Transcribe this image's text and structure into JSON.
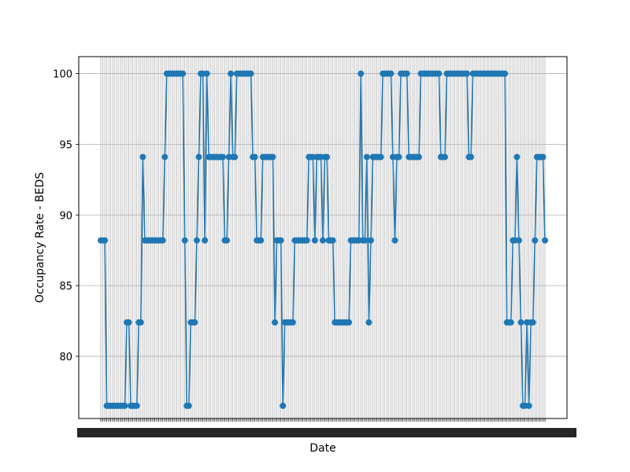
{
  "chart_data": {
    "type": "line",
    "title": "",
    "xlabel": "Date",
    "ylabel": "Occupancy Rate - BEDS",
    "grid": true,
    "ylim": [
      75.6,
      101.2
    ],
    "yticks": [
      80,
      85,
      90,
      95,
      100
    ],
    "x_tick_labels_note": "dense overlapping date labels (one per point), unreadable",
    "series": [
      {
        "name": "Occupancy Rate - BEDS",
        "color": "#1f77b4",
        "values": [
          88.2,
          88.2,
          88.2,
          76.5,
          76.5,
          76.5,
          76.5,
          76.5,
          76.5,
          76.5,
          76.5,
          76.5,
          76.5,
          82.4,
          82.4,
          76.5,
          76.5,
          76.5,
          76.5,
          82.4,
          82.4,
          94.1,
          88.2,
          88.2,
          88.2,
          88.2,
          88.2,
          88.2,
          88.2,
          88.2,
          88.2,
          88.2,
          94.1,
          100,
          100,
          100,
          100,
          100,
          100,
          100,
          100,
          100,
          88.2,
          76.5,
          76.5,
          82.4,
          82.4,
          82.4,
          88.2,
          94.1,
          100,
          100,
          88.2,
          100,
          94.1,
          94.1,
          94.1,
          94.1,
          94.1,
          94.1,
          94.1,
          94.1,
          88.2,
          88.2,
          94.1,
          100,
          94.1,
          94.1,
          100,
          100,
          100,
          100,
          100,
          100,
          100,
          100,
          94.1,
          94.1,
          88.2,
          88.2,
          88.2,
          94.1,
          94.1,
          94.1,
          94.1,
          94.1,
          94.1,
          82.4,
          88.2,
          88.2,
          88.2,
          76.5,
          82.4,
          82.4,
          82.4,
          82.4,
          82.4,
          88.2,
          88.2,
          88.2,
          88.2,
          88.2,
          88.2,
          88.2,
          94.1,
          94.1,
          94.1,
          88.2,
          94.1,
          94.1,
          94.1,
          88.2,
          94.1,
          94.1,
          88.2,
          88.2,
          88.2,
          82.4,
          82.4,
          82.4,
          82.4,
          82.4,
          82.4,
          82.4,
          82.4,
          88.2,
          88.2,
          88.2,
          88.2,
          88.2,
          100,
          88.2,
          88.2,
          94.1,
          82.4,
          88.2,
          94.1,
          94.1,
          94.1,
          94.1,
          94.1,
          100,
          100,
          100,
          100,
          100,
          94.1,
          88.2,
          94.1,
          94.1,
          100,
          100,
          100,
          100,
          94.1,
          94.1,
          94.1,
          94.1,
          94.1,
          94.1,
          100,
          100,
          100,
          100,
          100,
          100,
          100,
          100,
          100,
          100,
          94.1,
          94.1,
          94.1,
          100,
          100,
          100,
          100,
          100,
          100,
          100,
          100,
          100,
          100,
          100,
          94.1,
          94.1,
          100,
          100,
          100,
          100,
          100,
          100,
          100,
          100,
          100,
          100,
          100,
          100,
          100,
          100,
          100,
          100,
          100,
          82.4,
          82.4,
          82.4,
          88.2,
          88.2,
          94.1,
          88.2,
          82.4,
          76.5,
          76.5,
          82.4,
          76.5,
          82.4,
          82.4,
          88.2,
          94.1,
          94.1,
          94.1,
          94.1,
          88.2
        ]
      }
    ]
  }
}
